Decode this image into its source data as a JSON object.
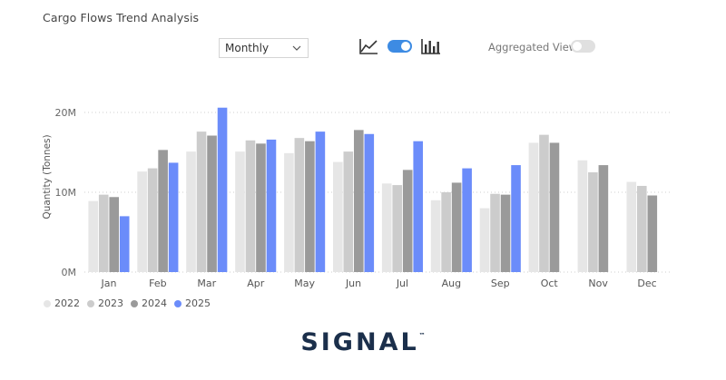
{
  "title": "Cargo Flows Trend Analysis",
  "controls": {
    "granularity": "Monthly",
    "line_icon": "line-chart-icon",
    "bar_icon": "bar-chart-icon",
    "chart_toggle_on": true,
    "aggregated_label": "Aggregated View",
    "aggregated_on": false
  },
  "brand": {
    "name": "SIGNAL",
    "tm": "™"
  },
  "colors": {
    "2022": "#e6e6e6",
    "2023": "#cccccc",
    "2024": "#9a9a9a",
    "2025": "#6b8cfa",
    "grid": "#cfcfcf",
    "axis": "#aaaaaa"
  },
  "chart_data": {
    "type": "bar",
    "ylabel": "Quantity (Tonnes)",
    "xlabel": "",
    "ylim": [
      0,
      23000000
    ],
    "yticks": [
      {
        "value": 0,
        "label": "0M"
      },
      {
        "value": 10000000,
        "label": "10M"
      },
      {
        "value": 20000000,
        "label": "20M"
      }
    ],
    "categories": [
      "Jan",
      "Feb",
      "Mar",
      "Apr",
      "May",
      "Jun",
      "Jul",
      "Aug",
      "Sep",
      "Oct",
      "Nov",
      "Dec"
    ],
    "series": [
      {
        "name": "2022",
        "values": [
          8900000,
          12600000,
          15100000,
          15100000,
          14900000,
          13800000,
          11100000,
          9000000,
          8000000,
          16200000,
          14000000,
          11300000
        ]
      },
      {
        "name": "2023",
        "values": [
          9700000,
          13000000,
          17600000,
          16500000,
          16800000,
          15100000,
          10900000,
          10000000,
          9800000,
          17200000,
          12500000,
          10800000
        ]
      },
      {
        "name": "2024",
        "values": [
          9400000,
          15300000,
          17100000,
          16100000,
          16400000,
          17800000,
          12800000,
          11200000,
          9700000,
          16200000,
          13400000,
          9600000
        ]
      },
      {
        "name": "2025",
        "values": [
          7000000,
          13700000,
          20600000,
          16600000,
          17600000,
          17300000,
          16400000,
          13000000,
          13400000,
          null,
          null,
          null
        ]
      }
    ],
    "legend_position": "bottom-left",
    "grid": true
  }
}
